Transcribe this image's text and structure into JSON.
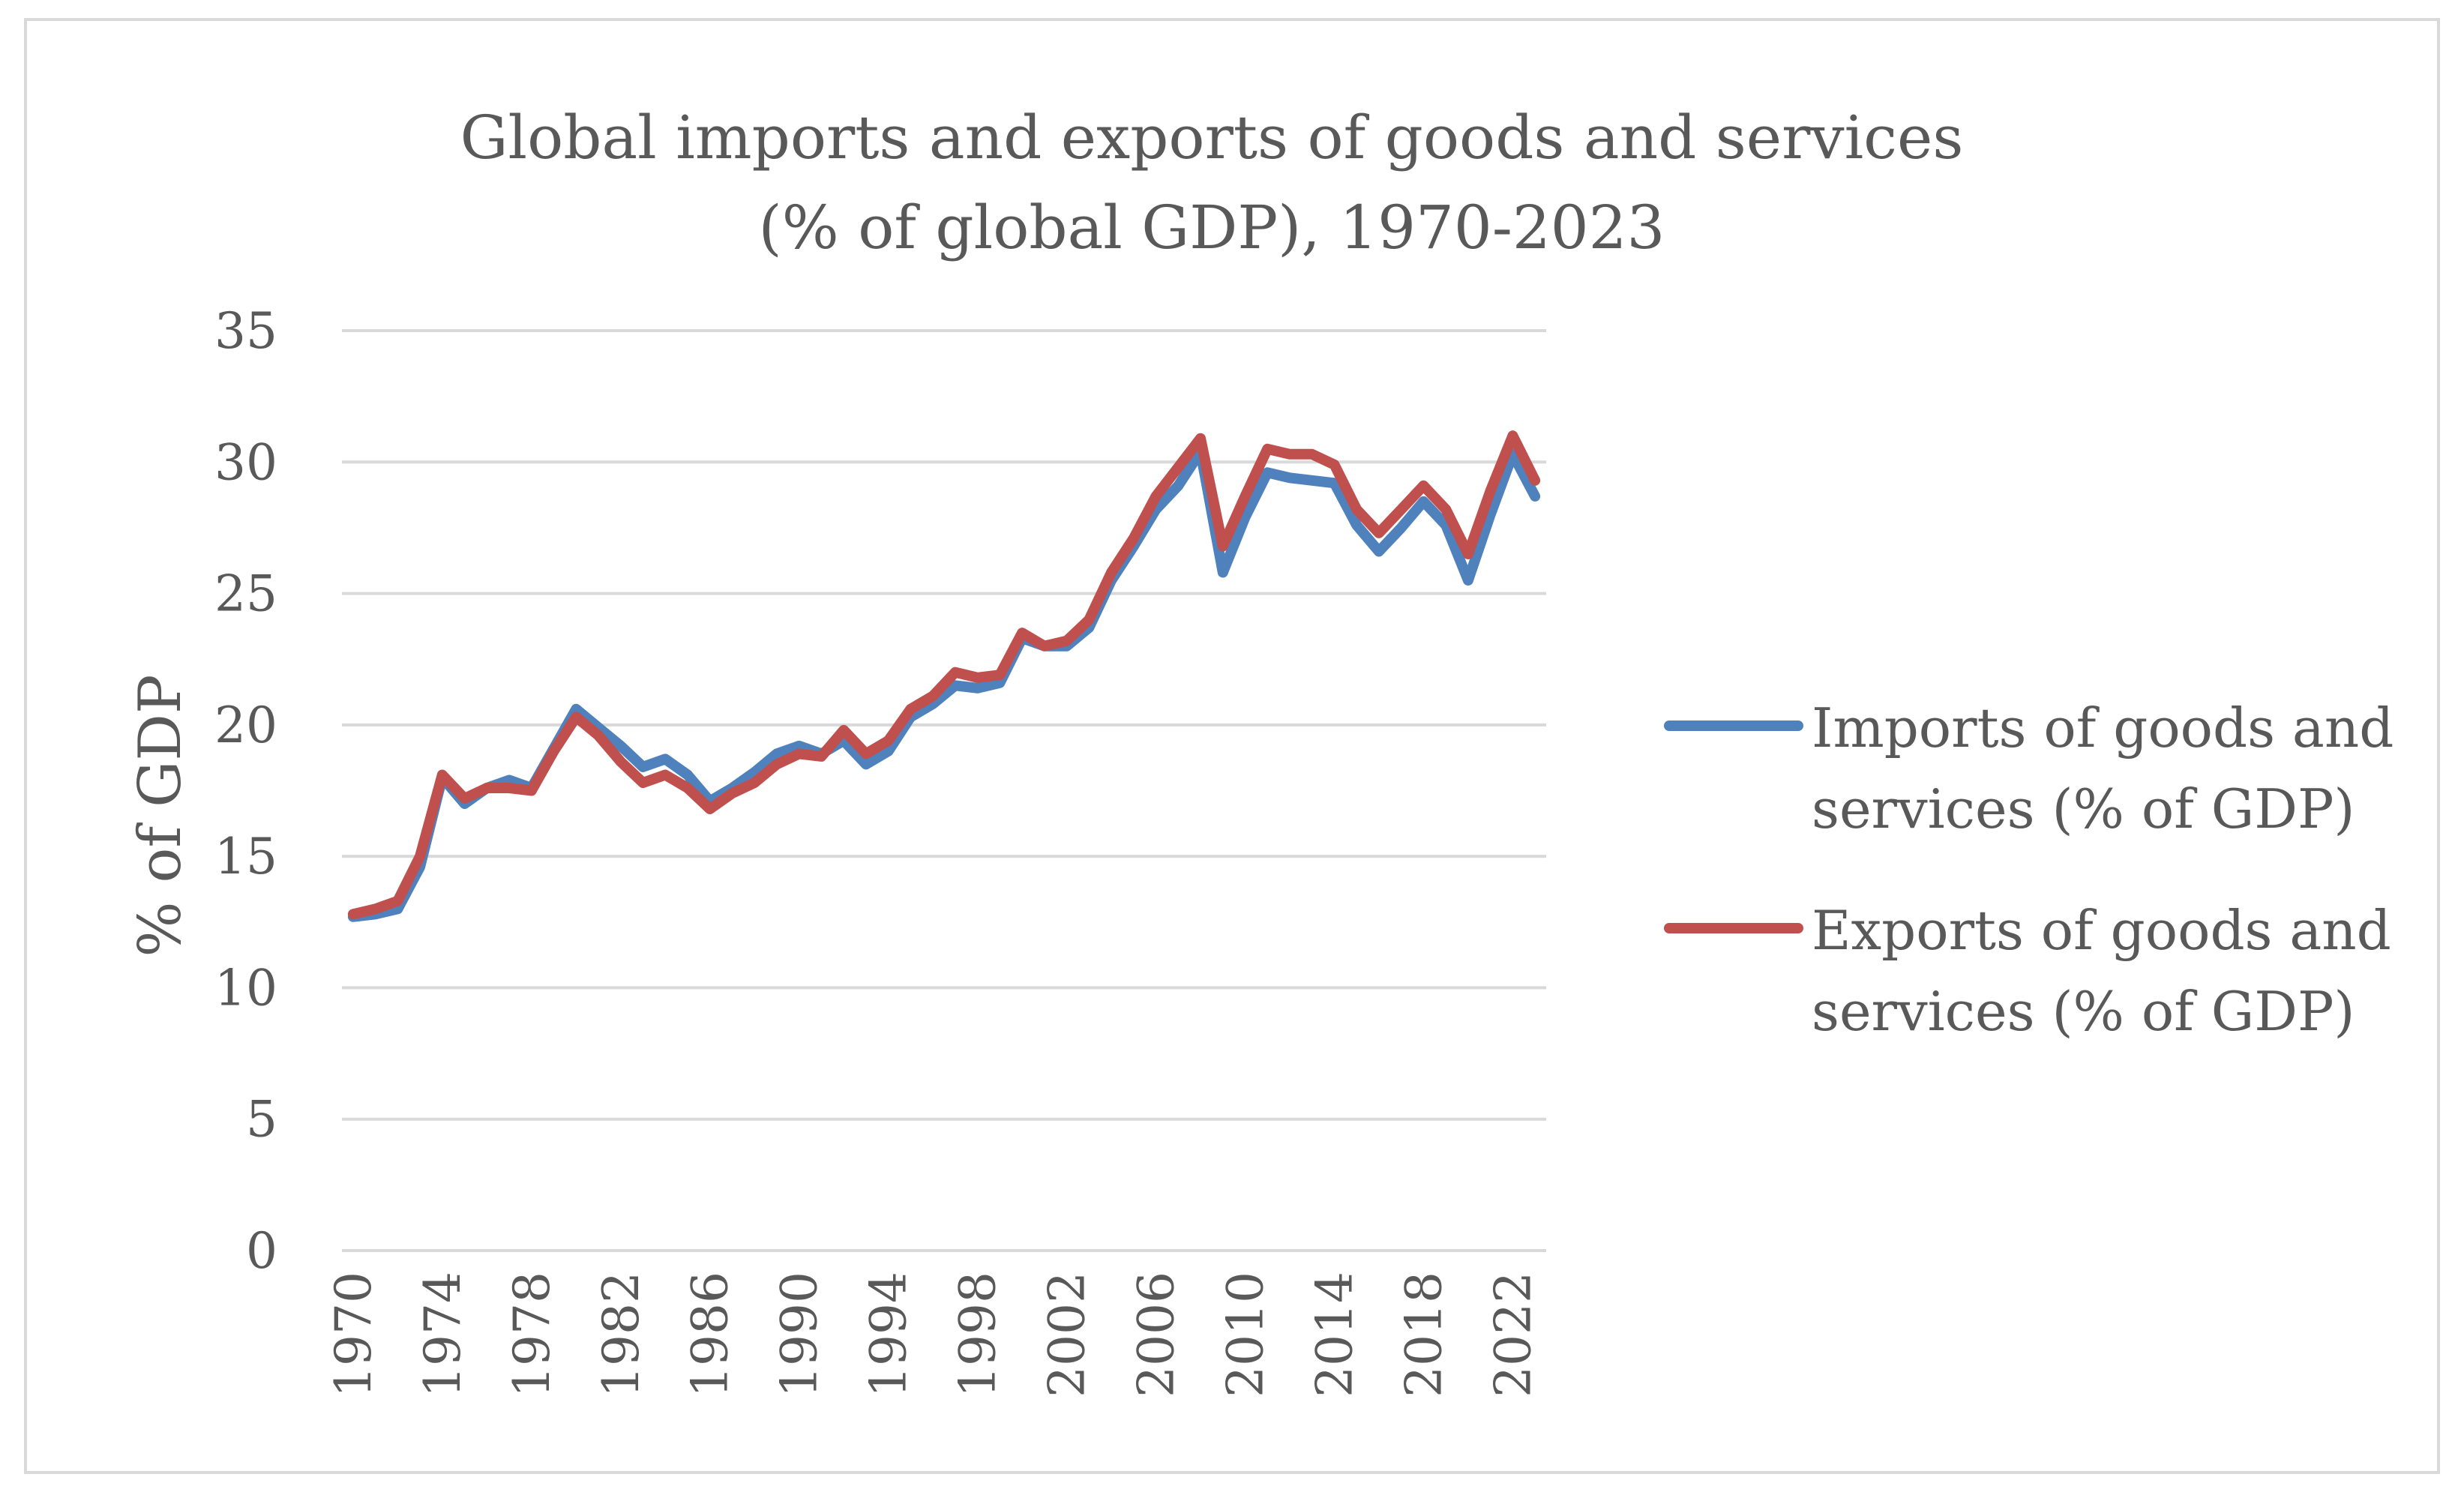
{
  "chart_data": {
    "type": "line",
    "title": "Global imports and exports of goods and services",
    "subtitle": "(% of global GDP), 1970-2023",
    "xlabel": "",
    "ylabel": "% of GDP",
    "ylim": [
      0,
      35
    ],
    "yticks": [
      0,
      5,
      10,
      15,
      20,
      25,
      30,
      35
    ],
    "xlim": [
      1970,
      2023
    ],
    "xtick_labels": [
      "1970",
      "1974",
      "1978",
      "1982",
      "1986",
      "1990",
      "1994",
      "1998",
      "2002",
      "2006",
      "2010",
      "2014",
      "2018",
      "2022"
    ],
    "grid": true,
    "legend_position": "right",
    "x": [
      1970,
      1971,
      1972,
      1973,
      1974,
      1975,
      1976,
      1977,
      1978,
      1979,
      1980,
      1981,
      1982,
      1983,
      1984,
      1985,
      1986,
      1987,
      1988,
      1989,
      1990,
      1991,
      1992,
      1993,
      1994,
      1995,
      1996,
      1997,
      1998,
      1999,
      2000,
      2001,
      2002,
      2003,
      2004,
      2005,
      2006,
      2007,
      2008,
      2009,
      2010,
      2011,
      2012,
      2013,
      2014,
      2015,
      2016,
      2017,
      2018,
      2019,
      2020,
      2021,
      2022,
      2023
    ],
    "series": [
      {
        "name": "Imports of goods and services (% of GDP)",
        "legend_lines": [
          "Imports of goods and",
          "services (% of GDP)"
        ],
        "color": "#4f81bd",
        "values": [
          12.7,
          12.8,
          13.0,
          14.6,
          18.0,
          17.0,
          17.6,
          17.9,
          17.6,
          19.1,
          20.6,
          19.9,
          19.2,
          18.4,
          18.7,
          18.1,
          17.1,
          17.6,
          18.2,
          18.9,
          19.2,
          18.9,
          19.4,
          18.5,
          19.0,
          20.3,
          20.8,
          21.5,
          21.4,
          21.6,
          23.3,
          23.0,
          23.0,
          23.7,
          25.5,
          26.8,
          28.2,
          29.1,
          30.4,
          25.8,
          27.9,
          29.6,
          29.4,
          29.3,
          29.2,
          27.6,
          26.6,
          27.5,
          28.5,
          27.6,
          25.5,
          28.0,
          30.3,
          28.7
        ]
      },
      {
        "name": "Exports of goods and services (% of GDP)",
        "legend_lines": [
          "Exports of goods and",
          "services (% of GDP)"
        ],
        "color": "#c0504d",
        "values": [
          12.8,
          13.0,
          13.3,
          15.0,
          18.1,
          17.2,
          17.6,
          17.6,
          17.5,
          19.0,
          20.3,
          19.6,
          18.6,
          17.8,
          18.1,
          17.6,
          16.8,
          17.4,
          17.8,
          18.5,
          18.9,
          18.8,
          19.8,
          18.9,
          19.4,
          20.6,
          21.1,
          22.0,
          21.8,
          21.9,
          23.5,
          23.0,
          23.2,
          24.0,
          25.8,
          27.1,
          28.7,
          29.8,
          30.9,
          26.8,
          28.7,
          30.5,
          30.3,
          30.3,
          29.9,
          28.2,
          27.3,
          28.2,
          29.1,
          28.2,
          26.5,
          28.9,
          31.0,
          29.3
        ]
      }
    ]
  }
}
